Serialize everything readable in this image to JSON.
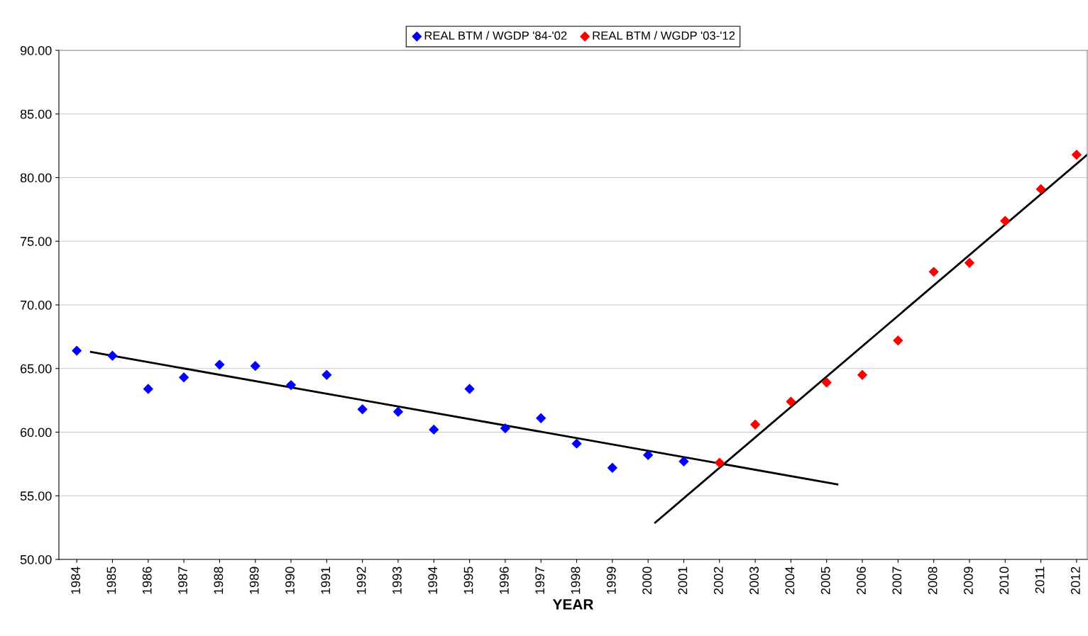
{
  "chart_data": {
    "type": "scatter",
    "xlabel": "YEAR",
    "series": [
      {
        "name": "REAL BTM / WGDP '84-'02",
        "color": "#0000ff",
        "marker": "diamond",
        "x": [
          1984,
          1985,
          1986,
          1987,
          1988,
          1989,
          1990,
          1991,
          1992,
          1993,
          1994,
          1995,
          1996,
          1997,
          1998,
          1999,
          2000,
          2001
        ],
        "values": [
          66.4,
          66.0,
          63.4,
          64.3,
          65.3,
          65.2,
          63.7,
          64.5,
          61.8,
          61.6,
          60.2,
          63.4,
          60.3,
          61.1,
          59.1,
          57.2,
          58.2,
          57.7
        ]
      },
      {
        "name": "REAL BTM / WGDP '03-'12",
        "color": "#ff0000",
        "marker": "diamond",
        "x": [
          2002,
          2003,
          2004,
          2005,
          2006,
          2007,
          2008,
          2009,
          2010,
          2011,
          2012
        ],
        "values": [
          57.6,
          60.6,
          62.4,
          63.9,
          64.5,
          67.2,
          72.6,
          73.3,
          76.6,
          79.1,
          81.8
        ]
      },
      {
        "type": "line",
        "color": "#000000",
        "marker": "none",
        "x": [
          1984.4,
          2005.3
        ],
        "values": [
          66.3,
          55.9
        ]
      },
      {
        "type": "line",
        "color": "#000000",
        "marker": "none",
        "x": [
          2000.2,
          2012.3
        ],
        "values": [
          52.9,
          81.8
        ]
      }
    ],
    "xlim": [
      1983.5,
      2012.3
    ],
    "xticks": [
      1984,
      1985,
      1986,
      1987,
      1988,
      1989,
      1990,
      1991,
      1992,
      1993,
      1994,
      1995,
      1996,
      1997,
      1998,
      1999,
      2000,
      2001,
      2002,
      2003,
      2004,
      2005,
      2006,
      2007,
      2008,
      2009,
      2010,
      2011,
      2012
    ],
    "ylim": [
      50,
      90
    ],
    "yticks": [
      {
        "value": 50,
        "label": "50.00"
      },
      {
        "value": 55,
        "label": "55.00"
      },
      {
        "value": 60,
        "label": "60.00"
      },
      {
        "value": 65,
        "label": "65.00"
      },
      {
        "value": 70,
        "label": "70.00"
      },
      {
        "value": 75,
        "label": "75.00"
      },
      {
        "value": 80,
        "label": "80.00"
      },
      {
        "value": 85,
        "label": "85.00"
      },
      {
        "value": 90,
        "label": "90.00"
      }
    ],
    "grid": "y",
    "legend": "top",
    "line_style": "solid"
  }
}
